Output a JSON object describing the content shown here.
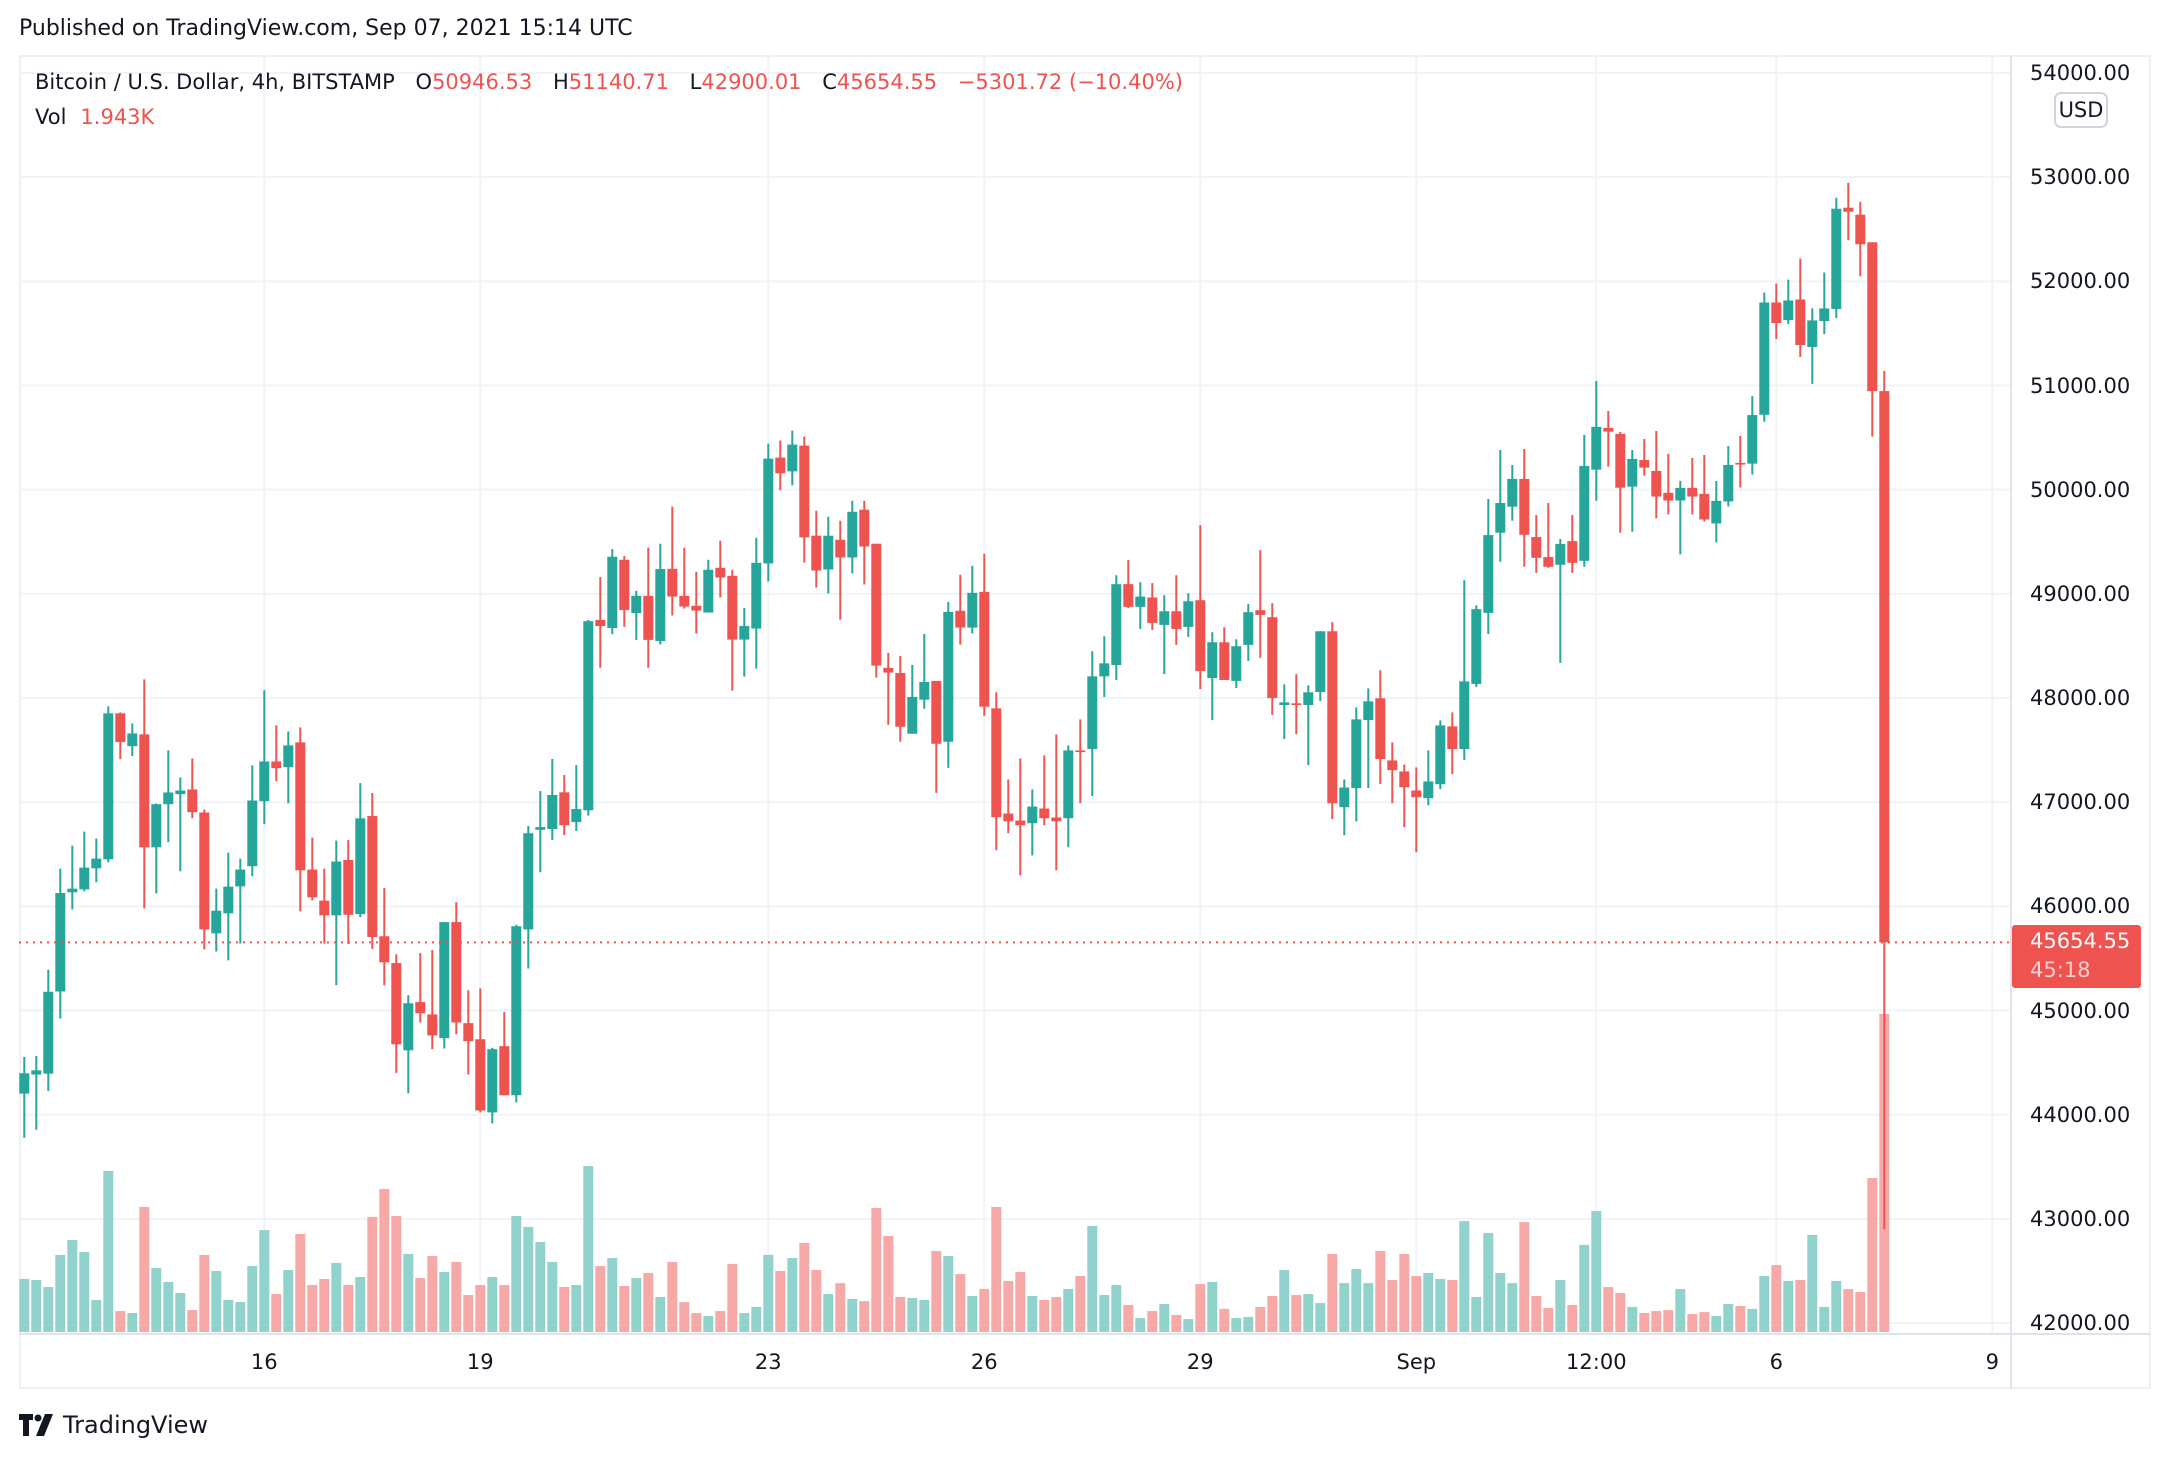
{
  "header": {
    "published": "Published on TradingView.com, Sep 07, 2021 15:14 UTC"
  },
  "legend": {
    "symbol": "Bitcoin / U.S. Dollar, 4h, BITSTAMP",
    "o_label": "O",
    "o_value": "50946.53",
    "h_label": "H",
    "h_value": "51140.71",
    "l_label": "L",
    "l_value": "42900.01",
    "c_label": "C",
    "c_value": "45654.55",
    "change": "−5301.72 (−10.40%)",
    "vol_label": "Vol",
    "vol_value": "1.943K"
  },
  "price_axis": {
    "currency": "USD",
    "last_price": "45654.55",
    "countdown": "45:18"
  },
  "brand": {
    "logo_text": "TradingView"
  },
  "colors": {
    "up": "#26a69a",
    "down": "#ef5350",
    "up_volume": "#92d2cc",
    "down_volume": "#f7a9a7",
    "grid": "#f0f3fa"
  },
  "chart_data": {
    "type": "candlestick",
    "title": "Bitcoin / U.S. Dollar, 4h, BITSTAMP",
    "interval": "4h",
    "first_bar": "2021-08-12T16:00Z",
    "ylim": [
      42000,
      54000
    ],
    "grid": true,
    "yticks": [
      54000,
      53000,
      52000,
      51000,
      50000,
      49000,
      48000,
      47000,
      46000,
      45000,
      44000,
      43000,
      42000
    ],
    "ytick_labels": [
      "54000.00",
      "53000.00",
      "52000.00",
      "51000.00",
      "50000.00",
      "49000.00",
      "48000.00",
      "47000.00",
      "46000.00",
      "45000.00",
      "44000.00",
      "43000.00",
      "42000.00"
    ],
    "xticks": [
      {
        "label": "16",
        "time": "2021-08-16T00:00Z"
      },
      {
        "label": "19",
        "time": "2021-08-19T00:00Z"
      },
      {
        "label": "23",
        "time": "2021-08-23T00:00Z"
      },
      {
        "label": "26",
        "time": "2021-08-26T00:00Z"
      },
      {
        "label": "29",
        "time": "2021-08-29T00:00Z"
      },
      {
        "label": "Sep",
        "time": "2021-09-01T00:00Z"
      },
      {
        "label": "12:00",
        "time": "2021-09-03T12:00Z"
      },
      {
        "label": "6",
        "time": "2021-09-06T00:00Z"
      },
      {
        "label": "9",
        "time": "2021-09-09T00:00Z"
      }
    ],
    "last_price": 45654.55,
    "ohlc": [
      [
        44202,
        44555,
        43779,
        44398
      ],
      [
        44385,
        44564,
        43856,
        44426
      ],
      [
        44394,
        45391,
        44228,
        45180
      ],
      [
        45183,
        46362,
        44923,
        46128
      ],
      [
        46135,
        46583,
        45971,
        46170
      ],
      [
        46163,
        46718,
        46144,
        46372
      ],
      [
        46365,
        46651,
        46231,
        46458
      ],
      [
        46452,
        47920,
        46423,
        47853
      ],
      [
        47853,
        47862,
        47413,
        47577
      ],
      [
        47538,
        47756,
        47442,
        47660
      ],
      [
        47651,
        48179,
        45981,
        46567
      ],
      [
        46567,
        46987,
        46125,
        46981
      ],
      [
        46981,
        47497,
        46615,
        47093
      ],
      [
        47077,
        47237,
        46337,
        47112
      ],
      [
        47122,
        47420,
        46846,
        46904
      ],
      [
        46901,
        46930,
        45587,
        45779
      ],
      [
        45741,
        46170,
        45567,
        45958
      ],
      [
        45933,
        46516,
        45481,
        46189
      ],
      [
        46192,
        46458,
        45644,
        46353
      ],
      [
        46385,
        47353,
        46289,
        47016
      ],
      [
        47010,
        48074,
        46788,
        47391
      ],
      [
        47391,
        47737,
        47202,
        47327
      ],
      [
        47337,
        47679,
        46990,
        47545
      ],
      [
        47574,
        47718,
        45952,
        46346
      ],
      [
        46353,
        46660,
        46058,
        46087
      ],
      [
        46055,
        46362,
        45644,
        45914
      ],
      [
        45914,
        46631,
        45244,
        46430
      ],
      [
        46445,
        46636,
        45640,
        45919
      ],
      [
        45926,
        47183,
        45897,
        46845
      ],
      [
        46867,
        47088,
        45592,
        45706
      ],
      [
        45713,
        46176,
        45243,
        45463
      ],
      [
        45456,
        45540,
        44401,
        44676
      ],
      [
        44618,
        45147,
        44206,
        45070
      ],
      [
        45081,
        45551,
        44886,
        44974
      ],
      [
        44963,
        45581,
        44629,
        44761
      ],
      [
        44735,
        45849,
        44636,
        45849
      ],
      [
        45849,
        46040,
        44772,
        44886
      ],
      [
        44879,
        45195,
        44386,
        44706
      ],
      [
        44724,
        45213,
        44022,
        44040
      ],
      [
        44022,
        44643,
        43915,
        44629
      ],
      [
        44658,
        44985,
        44187,
        44187
      ],
      [
        44187,
        45823,
        44118,
        45809
      ],
      [
        45779,
        46772,
        45404,
        46702
      ],
      [
        46735,
        47106,
        46327,
        46761
      ],
      [
        46742,
        47415,
        46636,
        47069
      ],
      [
        47095,
        47261,
        46684,
        46779
      ],
      [
        46809,
        47356,
        46724,
        46934
      ],
      [
        46922,
        48749,
        46871,
        48738
      ],
      [
        48749,
        49161,
        48290,
        48691
      ],
      [
        48672,
        49429,
        48613,
        49356
      ],
      [
        49327,
        49363,
        48683,
        48845
      ],
      [
        48815,
        49029,
        48558,
        48981
      ],
      [
        48981,
        49444,
        48290,
        48558
      ],
      [
        48547,
        49481,
        48514,
        49238
      ],
      [
        49240,
        49837,
        48792,
        48974
      ],
      [
        48981,
        49442,
        48859,
        48878
      ],
      [
        48885,
        49212,
        48619,
        48840
      ],
      [
        48821,
        49327,
        48821,
        49231
      ],
      [
        49250,
        49510,
        48965,
        49157
      ],
      [
        49173,
        49231,
        48071,
        48561
      ],
      [
        48561,
        48865,
        48205,
        48692
      ],
      [
        48667,
        49538,
        48282,
        49298
      ],
      [
        49292,
        50442,
        49119,
        50298
      ],
      [
        50308,
        50471,
        49994,
        50157
      ],
      [
        50176,
        50567,
        50042,
        50433
      ],
      [
        50423,
        50510,
        49301,
        49542
      ],
      [
        49558,
        49798,
        49061,
        49224
      ],
      [
        49234,
        49740,
        49003,
        49558
      ],
      [
        49519,
        49702,
        48753,
        49349
      ],
      [
        49349,
        49894,
        49196,
        49788
      ],
      [
        49808,
        49894,
        49090,
        49455
      ],
      [
        49481,
        49481,
        48196,
        48311
      ],
      [
        48289,
        48433,
        47744,
        48244
      ],
      [
        48240,
        48404,
        47580,
        47724
      ],
      [
        47657,
        48318,
        47657,
        48010
      ],
      [
        47984,
        48615,
        47897,
        48154
      ],
      [
        48164,
        48164,
        47090,
        47561
      ],
      [
        47580,
        48923,
        47330,
        48827
      ],
      [
        48837,
        49183,
        48513,
        48676
      ],
      [
        48676,
        49269,
        48619,
        49010
      ],
      [
        49019,
        49385,
        47830,
        47917
      ],
      [
        47901,
        48055,
        46539,
        46856
      ],
      [
        46891,
        47218,
        46702,
        46817
      ],
      [
        46824,
        47420,
        46298,
        46779
      ],
      [
        46798,
        47122,
        46490,
        46958
      ],
      [
        46939,
        47449,
        46779,
        46846
      ],
      [
        46853,
        47651,
        46346,
        46817
      ],
      [
        46846,
        47545,
        46567,
        47497
      ],
      [
        47497,
        47795,
        46990,
        47481
      ],
      [
        47510,
        48449,
        47058,
        48208
      ],
      [
        48208,
        48593,
        48010,
        48333
      ],
      [
        48317,
        49179,
        48173,
        49093
      ],
      [
        49093,
        49324,
        48865,
        48875
      ],
      [
        48875,
        49112,
        48663,
        48974
      ],
      [
        48965,
        49103,
        48654,
        48721
      ],
      [
        48702,
        48987,
        48231,
        48833
      ],
      [
        48833,
        49179,
        48510,
        48663
      ],
      [
        48683,
        49006,
        48587,
        48929
      ],
      [
        48939,
        49660,
        48087,
        48260
      ],
      [
        48192,
        48631,
        47788,
        48535
      ],
      [
        48535,
        48679,
        48173,
        48173
      ],
      [
        48164,
        48564,
        48096,
        48497
      ],
      [
        48510,
        48901,
        48356,
        48824
      ],
      [
        48843,
        49420,
        48385,
        48798
      ],
      [
        48776,
        48910,
        47837,
        48000
      ],
      [
        47933,
        48131,
        47606,
        47958
      ],
      [
        47949,
        48228,
        47654,
        47933
      ],
      [
        47933,
        48122,
        47356,
        48055
      ],
      [
        48058,
        48641,
        47971,
        48641
      ],
      [
        48641,
        48728,
        46837,
        46990
      ],
      [
        46952,
        47218,
        46683,
        47141
      ],
      [
        47135,
        47910,
        46817,
        47795
      ],
      [
        47789,
        48093,
        47135,
        47968
      ],
      [
        47997,
        48266,
        47173,
        47414
      ],
      [
        47401,
        47574,
        46990,
        47308
      ],
      [
        47295,
        47362,
        46760,
        47144
      ],
      [
        47112,
        47334,
        46519,
        47048
      ],
      [
        47039,
        47497,
        46971,
        47199
      ],
      [
        47173,
        47785,
        47125,
        47737
      ],
      [
        47728,
        47862,
        47269,
        47510
      ],
      [
        47510,
        49131,
        47404,
        48160
      ],
      [
        48135,
        48891,
        48106,
        48853
      ],
      [
        48817,
        49910,
        48615,
        49564
      ],
      [
        49587,
        50381,
        49308,
        49872
      ],
      [
        49837,
        50237,
        49702,
        50103
      ],
      [
        50103,
        50391,
        49260,
        49567
      ],
      [
        49545,
        49756,
        49202,
        49346
      ],
      [
        49353,
        49872,
        49250,
        49260
      ],
      [
        49279,
        49526,
        48337,
        49478
      ],
      [
        49506,
        49756,
        49202,
        49298
      ],
      [
        49317,
        50526,
        49260,
        50228
      ],
      [
        50192,
        51045,
        49894,
        50603
      ],
      [
        50593,
        50756,
        50221,
        50558
      ],
      [
        50535,
        50555,
        49587,
        50019
      ],
      [
        50029,
        50381,
        49596,
        50295
      ],
      [
        50285,
        50486,
        50135,
        50212
      ],
      [
        50180,
        50563,
        49724,
        49934
      ],
      [
        49970,
        50343,
        49762,
        49896
      ],
      [
        49896,
        50084,
        49379,
        50017
      ],
      [
        50017,
        50304,
        49762,
        49934
      ],
      [
        49960,
        50333,
        49695,
        49714
      ],
      [
        49676,
        50084,
        49494,
        49893
      ],
      [
        49887,
        50419,
        49839,
        50237
      ],
      [
        50257,
        50515,
        50021,
        50241
      ],
      [
        50250,
        50898,
        50145,
        50716
      ],
      [
        50719,
        51893,
        50652,
        51797
      ],
      [
        51797,
        51979,
        51446,
        51600
      ],
      [
        51628,
        52017,
        51590,
        51816
      ],
      [
        51826,
        52218,
        51274,
        51389
      ],
      [
        51370,
        51740,
        51016,
        51625
      ],
      [
        51619,
        52084,
        51494,
        51740
      ],
      [
        51734,
        52802,
        51647,
        52697
      ],
      [
        52707,
        52946,
        52394,
        52668
      ],
      [
        52640,
        52764,
        52049,
        52356
      ],
      [
        52375,
        52375,
        50509,
        50946.53
      ],
      [
        50946.53,
        51140.71,
        42900.01,
        45654.55
      ]
    ],
    "volume": [
      324,
      318,
      275,
      471,
      562,
      489,
      196,
      984,
      128,
      116,
      764,
      391,
      306,
      238,
      134,
      471,
      373,
      196,
      183,
      403,
      623,
      232,
      379,
      599,
      287,
      324,
      422,
      287,
      336,
      703,
      874,
      709,
      477,
      330,
      464,
      367,
      428,
      226,
      287,
      336,
      287,
      709,
      642,
      550,
      428,
      275,
      287,
      1014,
      403,
      452,
      281,
      330,
      361,
      214,
      428,
      183,
      116,
      98,
      128,
      416,
      116,
      153,
      471,
      373,
      452,
      544,
      379,
      232,
      299,
      202,
      189,
      758,
      587,
      214,
      208,
      196,
      495,
      464,
      354,
      220,
      263,
      764,
      312,
      367,
      220,
      196,
      214,
      263,
      342,
      648,
      226,
      287,
      165,
      86,
      128,
      171,
      104,
      79,
      293,
      306,
      141,
      86,
      92,
      153,
      220,
      379,
      226,
      232,
      177,
      477,
      299,
      385,
      299,
      495,
      318,
      477,
      342,
      361,
      324,
      318,
      678,
      214,
      605,
      361,
      299,
      672,
      220,
      147,
      318,
      165,
      532,
      739,
      275,
      238,
      153,
      116,
      128,
      134,
      263,
      110,
      122,
      98,
      171,
      159,
      141,
      342,
      409,
      312,
      318,
      593,
      153,
      312,
      263,
      244,
      941,
      1943
    ]
  }
}
